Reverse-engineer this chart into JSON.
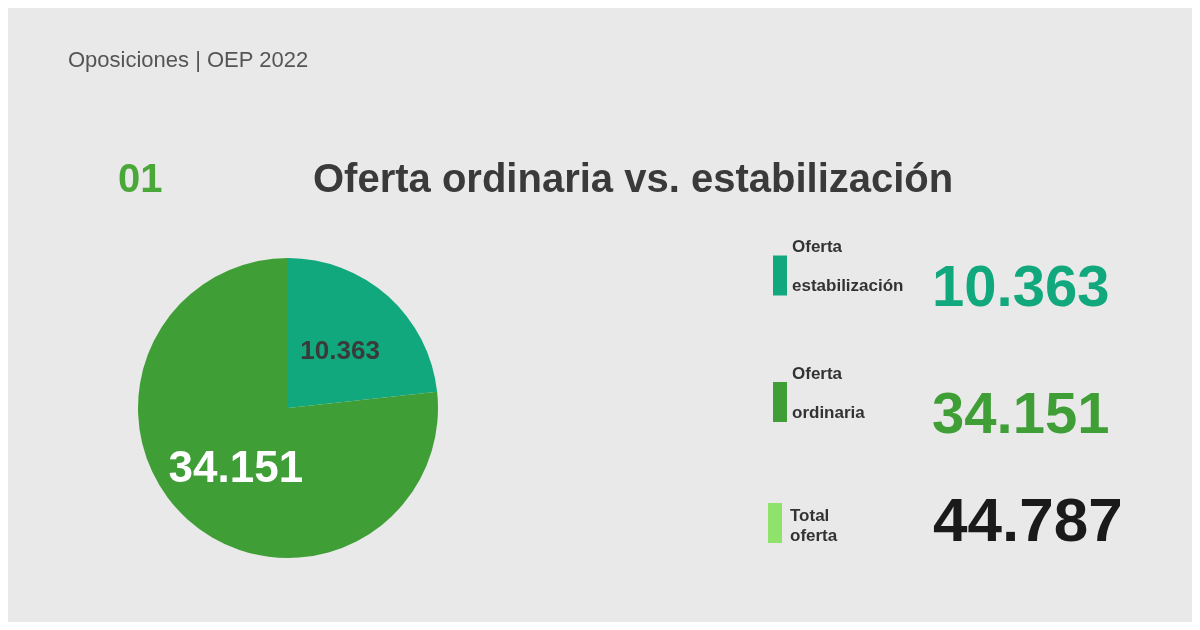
{
  "chart_data": {
    "type": "pie",
    "title": "Oferta ordinaria vs. estabilización",
    "subtitle": "Oposiciones | OEP 2022",
    "categories": [
      "Oferta\nestabilización",
      "Oferta\nordinaria"
    ],
    "values": [
      10363,
      34151
    ],
    "colors": [
      "#10a87c",
      "#3f9f36"
    ],
    "value_labels": [
      "10.363",
      "34.151"
    ],
    "legend": "right",
    "annotations": [
      "01",
      "Total oferta",
      "44.787"
    ]
  }
}
